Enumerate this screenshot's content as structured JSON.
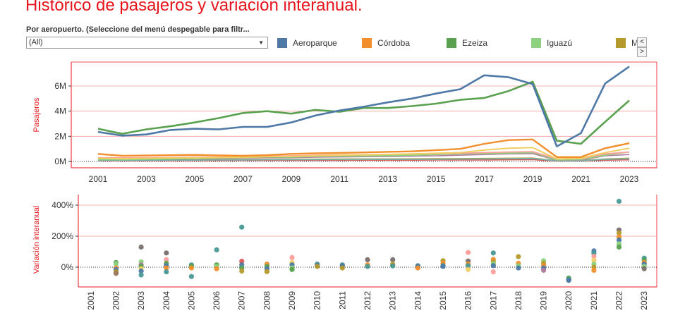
{
  "header": {
    "title": "Histórico de pasajeros y variación interanual.",
    "subtitle": "Por aeropuerto. (Seleccione del menú despegable para filtr...",
    "select_value": "(All)",
    "select_arrow": "▼"
  },
  "legend": {
    "items": [
      {
        "label": "Aeroparque",
        "color": "#4e79a7"
      },
      {
        "label": "Córdoba",
        "color": "#f28e2b"
      },
      {
        "label": "Ezeiza",
        "color": "#59a14f"
      },
      {
        "label": "Iguazú",
        "color": "#8cd17d"
      },
      {
        "label": "M",
        "color": "#b6992d"
      }
    ],
    "nav_prev": "<",
    "nav_next": ">"
  },
  "chart_data": [
    {
      "type": "line",
      "ylabel": "Pasajeros",
      "x": [
        2001,
        2002,
        2003,
        2004,
        2005,
        2006,
        2007,
        2008,
        2009,
        2010,
        2011,
        2012,
        2013,
        2014,
        2015,
        2016,
        2017,
        2018,
        2019,
        2020,
        2021,
        2022,
        2023
      ],
      "x_ticks": [
        "2001",
        "2003",
        "2005",
        "2007",
        "2009",
        "2011",
        "2013",
        "2015",
        "2017",
        "2019",
        "2021",
        "2023"
      ],
      "y_ticks": [
        {
          "v": 0,
          "label": "0M"
        },
        {
          "v": 2,
          "label": "2M"
        },
        {
          "v": 4,
          "label": "4M"
        },
        {
          "v": 6,
          "label": "6M"
        }
      ],
      "ylim": [
        0,
        8
      ],
      "series": [
        {
          "name": "Aeroparque",
          "color": "#4e79a7",
          "width": 2.6,
          "values": [
            2.35,
            2.05,
            2.15,
            2.5,
            2.6,
            2.55,
            2.75,
            2.75,
            3.1,
            3.65,
            4.05,
            4.35,
            4.7,
            5.0,
            5.4,
            5.75,
            6.85,
            6.7,
            6.15,
            1.2,
            2.25,
            6.2,
            7.55
          ]
        },
        {
          "name": "Ezeiza",
          "color": "#59a14f",
          "width": 2.6,
          "values": [
            2.6,
            2.2,
            2.55,
            2.8,
            3.1,
            3.45,
            3.85,
            4.0,
            3.8,
            4.1,
            3.95,
            4.25,
            4.25,
            4.4,
            4.6,
            4.9,
            5.05,
            5.6,
            6.35,
            1.65,
            1.4,
            3.15,
            4.85
          ]
        },
        {
          "name": "Córdoba",
          "color": "#f28e2b",
          "width": 2.4,
          "values": [
            0.6,
            0.45,
            0.47,
            0.5,
            0.52,
            0.48,
            0.45,
            0.5,
            0.6,
            0.65,
            0.68,
            0.72,
            0.76,
            0.8,
            0.9,
            1.0,
            1.4,
            1.7,
            1.75,
            0.35,
            0.35,
            1.05,
            1.45
          ]
        },
        {
          "name": "",
          "color": "#f1ce63",
          "width": 2,
          "values": [
            0.25,
            0.22,
            0.25,
            0.28,
            0.3,
            0.32,
            0.35,
            0.38,
            0.4,
            0.45,
            0.5,
            0.52,
            0.56,
            0.6,
            0.65,
            0.7,
            0.9,
            1.05,
            1.1,
            0.2,
            0.25,
            0.7,
            1.05
          ]
        },
        {
          "name": "",
          "color": "#ff9d9a",
          "width": 1.8,
          "values": [
            0.3,
            0.28,
            0.3,
            0.32,
            0.34,
            0.36,
            0.4,
            0.42,
            0.45,
            0.5,
            0.52,
            0.54,
            0.56,
            0.6,
            0.62,
            0.65,
            0.7,
            0.75,
            0.78,
            0.2,
            0.22,
            0.6,
            0.75
          ]
        },
        {
          "name": "Iguazú",
          "color": "#8cd17d",
          "width": 1.8,
          "values": [
            0.15,
            0.14,
            0.18,
            0.2,
            0.24,
            0.28,
            0.32,
            0.36,
            0.35,
            0.4,
            0.42,
            0.44,
            0.46,
            0.5,
            0.55,
            0.6,
            0.62,
            0.65,
            0.72,
            0.12,
            0.15,
            0.5,
            0.75
          ]
        },
        {
          "name": "",
          "color": "#b07aa1",
          "width": 1.6,
          "values": [
            0.2,
            0.18,
            0.2,
            0.22,
            0.24,
            0.26,
            0.28,
            0.3,
            0.3,
            0.34,
            0.36,
            0.38,
            0.4,
            0.42,
            0.45,
            0.5,
            0.55,
            0.6,
            0.62,
            0.1,
            0.12,
            0.45,
            0.55
          ]
        },
        {
          "name": "",
          "color": "#76b7b2",
          "width": 1.6,
          "values": [
            0.08,
            0.08,
            0.09,
            0.1,
            0.1,
            0.11,
            0.12,
            0.13,
            0.13,
            0.14,
            0.15,
            0.16,
            0.16,
            0.17,
            0.18,
            0.19,
            0.2,
            0.22,
            0.24,
            0.05,
            0.06,
            0.18,
            0.22
          ]
        },
        {
          "name": "",
          "color": "#9c755f",
          "width": 1.6,
          "values": [
            0.1,
            0.09,
            0.1,
            0.11,
            0.12,
            0.13,
            0.14,
            0.14,
            0.14,
            0.15,
            0.15,
            0.15,
            0.16,
            0.16,
            0.17,
            0.18,
            0.19,
            0.2,
            0.21,
            0.05,
            0.06,
            0.15,
            0.2
          ]
        },
        {
          "name": "",
          "color": "#e15759",
          "width": 1.6,
          "values": [
            0.05,
            0.05,
            0.05,
            0.06,
            0.06,
            0.07,
            0.08,
            0.08,
            0.08,
            0.09,
            0.09,
            0.1,
            0.1,
            0.1,
            0.11,
            0.11,
            0.12,
            0.13,
            0.14,
            0.03,
            0.04,
            0.1,
            0.13
          ]
        },
        {
          "name": "M",
          "color": "#b6992d",
          "width": 1.6,
          "values": [
            0.12,
            0.11,
            0.12,
            0.13,
            0.14,
            0.15,
            0.16,
            0.17,
            0.17,
            0.18,
            0.19,
            0.2,
            0.2,
            0.21,
            0.22,
            0.23,
            0.24,
            0.26,
            0.27,
            0.06,
            0.08,
            0.2,
            0.26
          ]
        }
      ]
    },
    {
      "type": "scatter",
      "ylabel": "Variación interanual",
      "x_categories": [
        "2001",
        "2002",
        "2003",
        "2004",
        "2005",
        "2006",
        "2007",
        "2008",
        "2009",
        "2010",
        "2011",
        "2012",
        "2013",
        "2014",
        "2015",
        "2016",
        "2017",
        "2018",
        "2019",
        "2020",
        "2021",
        "2022",
        "2023"
      ],
      "y_ticks": [
        {
          "v": 0,
          "label": "0%"
        },
        {
          "v": 200,
          "label": "200%"
        },
        {
          "v": 400,
          "label": "400%"
        }
      ],
      "ylim": [
        -130,
        470
      ],
      "points": [
        {
          "x": "2002",
          "y": 30,
          "color": "#59a14f"
        },
        {
          "x": "2002",
          "y": 22,
          "color": "#8cd17d"
        },
        {
          "x": "2002",
          "y": -5,
          "color": "#f28e2b"
        },
        {
          "x": "2002",
          "y": -15,
          "color": "#4e79a7"
        },
        {
          "x": "2002",
          "y": -30,
          "color": "#b6992d"
        },
        {
          "x": "2002",
          "y": -40,
          "color": "#9c755f"
        },
        {
          "x": "2003",
          "y": 130,
          "color": "#79706e"
        },
        {
          "x": "2003",
          "y": 35,
          "color": "#8cd17d"
        },
        {
          "x": "2003",
          "y": 15,
          "color": "#b07aa1"
        },
        {
          "x": "2003",
          "y": 5,
          "color": "#59a14f"
        },
        {
          "x": "2003",
          "y": -10,
          "color": "#f1ce63"
        },
        {
          "x": "2003",
          "y": -25,
          "color": "#4e79a7"
        },
        {
          "x": "2003",
          "y": -50,
          "color": "#499894"
        },
        {
          "x": "2004",
          "y": 92,
          "color": "#79706e"
        },
        {
          "x": "2004",
          "y": 48,
          "color": "#ff9d9a"
        },
        {
          "x": "2004",
          "y": 25,
          "color": "#59a14f"
        },
        {
          "x": "2004",
          "y": 10,
          "color": "#4e79a7"
        },
        {
          "x": "2004",
          "y": -5,
          "color": "#f28e2b"
        },
        {
          "x": "2004",
          "y": -30,
          "color": "#499894"
        },
        {
          "x": "2005",
          "y": 15,
          "color": "#499894"
        },
        {
          "x": "2005",
          "y": 5,
          "color": "#59a14f"
        },
        {
          "x": "2005",
          "y": -5,
          "color": "#f28e2b"
        },
        {
          "x": "2005",
          "y": -60,
          "color": "#499894"
        },
        {
          "x": "2006",
          "y": 112,
          "color": "#499894"
        },
        {
          "x": "2006",
          "y": 15,
          "color": "#59a14f"
        },
        {
          "x": "2006",
          "y": 5,
          "color": "#8cd17d"
        },
        {
          "x": "2006",
          "y": -10,
          "color": "#f28e2b"
        },
        {
          "x": "2007",
          "y": 258,
          "color": "#499894"
        },
        {
          "x": "2007",
          "y": 38,
          "color": "#e15759"
        },
        {
          "x": "2007",
          "y": 15,
          "color": "#4e79a7"
        },
        {
          "x": "2007",
          "y": -5,
          "color": "#59a14f"
        },
        {
          "x": "2007",
          "y": -25,
          "color": "#b6992d"
        },
        {
          "x": "2008",
          "y": 20,
          "color": "#f28e2b"
        },
        {
          "x": "2008",
          "y": 5,
          "color": "#59a14f"
        },
        {
          "x": "2008",
          "y": -10,
          "color": "#4e79a7"
        },
        {
          "x": "2008",
          "y": -28,
          "color": "#b6992d"
        },
        {
          "x": "2009",
          "y": 62,
          "color": "#ff9d9a"
        },
        {
          "x": "2009",
          "y": 30,
          "color": "#f1ce63"
        },
        {
          "x": "2009",
          "y": 15,
          "color": "#4e79a7"
        },
        {
          "x": "2009",
          "y": -5,
          "color": "#8cd17d"
        },
        {
          "x": "2009",
          "y": -15,
          "color": "#59a14f"
        },
        {
          "x": "2010",
          "y": 20,
          "color": "#499894"
        },
        {
          "x": "2010",
          "y": 12,
          "color": "#4e79a7"
        },
        {
          "x": "2010",
          "y": 5,
          "color": "#b6992d"
        },
        {
          "x": "2011",
          "y": 15,
          "color": "#499894"
        },
        {
          "x": "2011",
          "y": 8,
          "color": "#4e79a7"
        },
        {
          "x": "2011",
          "y": -5,
          "color": "#b6992d"
        },
        {
          "x": "2012",
          "y": 48,
          "color": "#79706e"
        },
        {
          "x": "2012",
          "y": 15,
          "color": "#f28e2b"
        },
        {
          "x": "2012",
          "y": 5,
          "color": "#499894"
        },
        {
          "x": "2013",
          "y": 48,
          "color": "#79706e"
        },
        {
          "x": "2013",
          "y": 20,
          "color": "#b6992d"
        },
        {
          "x": "2013",
          "y": 8,
          "color": "#499894"
        },
        {
          "x": "2014",
          "y": 10,
          "color": "#499894"
        },
        {
          "x": "2014",
          "y": 5,
          "color": "#4e79a7"
        },
        {
          "x": "2014",
          "y": -5,
          "color": "#f28e2b"
        },
        {
          "x": "2015",
          "y": 42,
          "color": "#b6992d"
        },
        {
          "x": "2015",
          "y": 25,
          "color": "#f28e2b"
        },
        {
          "x": "2015",
          "y": 10,
          "color": "#499894"
        },
        {
          "x": "2015",
          "y": 5,
          "color": "#4e79a7"
        },
        {
          "x": "2016",
          "y": 95,
          "color": "#ff9d9a"
        },
        {
          "x": "2016",
          "y": 40,
          "color": "#79706e"
        },
        {
          "x": "2016",
          "y": 20,
          "color": "#f28e2b"
        },
        {
          "x": "2016",
          "y": 10,
          "color": "#499894"
        },
        {
          "x": "2016",
          "y": -15,
          "color": "#f1ce63"
        },
        {
          "x": "2017",
          "y": 92,
          "color": "#499894"
        },
        {
          "x": "2017",
          "y": 50,
          "color": "#f28e2b"
        },
        {
          "x": "2017",
          "y": 35,
          "color": "#b6992d"
        },
        {
          "x": "2017",
          "y": 22,
          "color": "#8cd17d"
        },
        {
          "x": "2017",
          "y": 10,
          "color": "#4e79a7"
        },
        {
          "x": "2017",
          "y": -30,
          "color": "#ff9d9a"
        },
        {
          "x": "2018",
          "y": 68,
          "color": "#b6992d"
        },
        {
          "x": "2018",
          "y": 25,
          "color": "#f28e2b"
        },
        {
          "x": "2018",
          "y": 10,
          "color": "#8cd17d"
        },
        {
          "x": "2018",
          "y": -5,
          "color": "#4e79a7"
        },
        {
          "x": "2019",
          "y": 42,
          "color": "#8cd17d"
        },
        {
          "x": "2019",
          "y": 25,
          "color": "#b6992d"
        },
        {
          "x": "2019",
          "y": 10,
          "color": "#f28e2b"
        },
        {
          "x": "2019",
          "y": -5,
          "color": "#4e79a7"
        },
        {
          "x": "2019",
          "y": -20,
          "color": "#b07aa1"
        },
        {
          "x": "2020",
          "y": -70,
          "color": "#59a14f"
        },
        {
          "x": "2020",
          "y": -78,
          "color": "#499894"
        },
        {
          "x": "2020",
          "y": -85,
          "color": "#4e79a7"
        },
        {
          "x": "2021",
          "y": 105,
          "color": "#4e79a7"
        },
        {
          "x": "2021",
          "y": 90,
          "color": "#499894"
        },
        {
          "x": "2021",
          "y": 70,
          "color": "#ff9d9a"
        },
        {
          "x": "2021",
          "y": 45,
          "color": "#f1ce63"
        },
        {
          "x": "2021",
          "y": 20,
          "color": "#8cd17d"
        },
        {
          "x": "2021",
          "y": 0,
          "color": "#b6992d"
        },
        {
          "x": "2021",
          "y": -20,
          "color": "#f28e2b"
        },
        {
          "x": "2022",
          "y": 425,
          "color": "#499894"
        },
        {
          "x": "2022",
          "y": 240,
          "color": "#79706e"
        },
        {
          "x": "2022",
          "y": 220,
          "color": "#b6992d"
        },
        {
          "x": "2022",
          "y": 195,
          "color": "#f28e2b"
        },
        {
          "x": "2022",
          "y": 175,
          "color": "#4e79a7"
        },
        {
          "x": "2022",
          "y": 150,
          "color": "#8cd17d"
        },
        {
          "x": "2022",
          "y": 130,
          "color": "#59a14f"
        },
        {
          "x": "2023",
          "y": 58,
          "color": "#499894"
        },
        {
          "x": "2023",
          "y": 45,
          "color": "#59a14f"
        },
        {
          "x": "2023",
          "y": 30,
          "color": "#f28e2b"
        },
        {
          "x": "2023",
          "y": 20,
          "color": "#4e79a7"
        },
        {
          "x": "2023",
          "y": 5,
          "color": "#8cd17d"
        },
        {
          "x": "2023",
          "y": -10,
          "color": "#79706e"
        }
      ]
    }
  ]
}
